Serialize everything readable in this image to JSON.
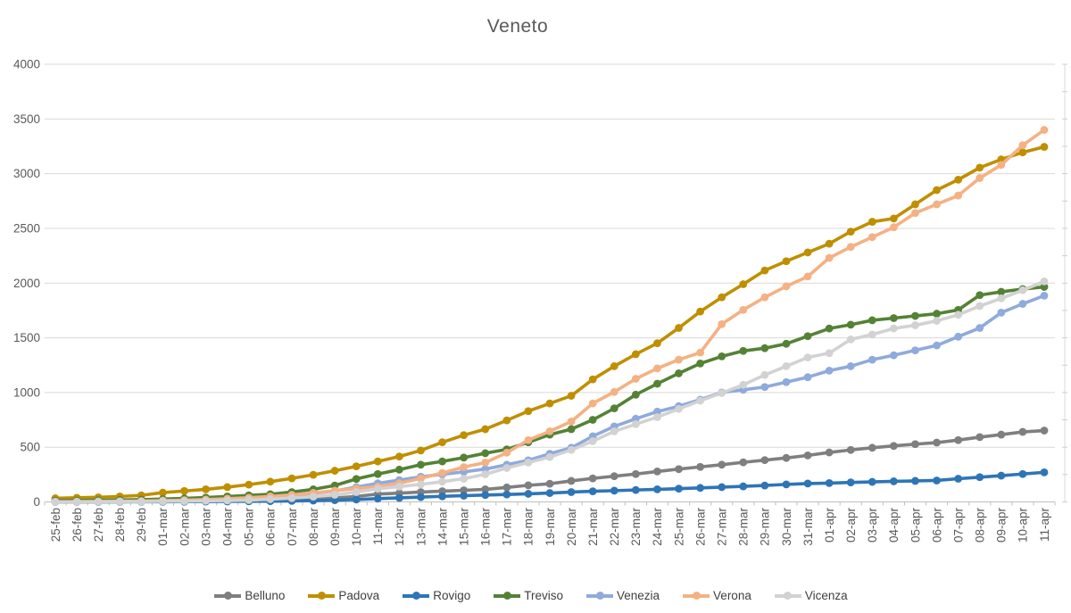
{
  "chart_data": {
    "type": "line",
    "title": "Veneto",
    "xlabel": "",
    "ylabel": "",
    "ylim": [
      0,
      4000
    ],
    "y_tick_step": 500,
    "y_ticks": [
      "4000",
      "3500",
      "3000",
      "2500",
      "2000",
      "1500",
      "1000",
      "500",
      "0"
    ],
    "grid": "horizontal",
    "legend_position": "bottom",
    "right_axis_minor_tick_step": 250,
    "marker": "circle",
    "categories": [
      "25-feb",
      "26-feb",
      "27-feb",
      "28-feb",
      "29-feb",
      "01-mar",
      "02-mar",
      "03-mar",
      "04-mar",
      "05-mar",
      "06-mar",
      "07-mar",
      "08-mar",
      "09-mar",
      "10-mar",
      "11-mar",
      "12-mar",
      "13-mar",
      "14-mar",
      "15-mar",
      "16-mar",
      "17-mar",
      "18-mar",
      "19-mar",
      "20-mar",
      "21-mar",
      "22-mar",
      "23-mar",
      "24-mar",
      "25-mar",
      "26-mar",
      "27-mar",
      "28-mar",
      "29-mar",
      "30-mar",
      "31-mar",
      "01-apr",
      "02-apr",
      "03-apr",
      "04-apr",
      "05-apr",
      "06-apr",
      "07-apr",
      "08-apr",
      "09-apr",
      "10-apr",
      "11-apr"
    ],
    "series": [
      {
        "name": "Belluno",
        "color": "#7f7f7f",
        "values": [
          1,
          1,
          1,
          2,
          2,
          3,
          4,
          6,
          8,
          10,
          14,
          19,
          26,
          36,
          50,
          72,
          80,
          90,
          98,
          106,
          115,
          132,
          152,
          166,
          192,
          215,
          235,
          255,
          278,
          300,
          320,
          340,
          362,
          382,
          402,
          425,
          452,
          475,
          495,
          512,
          528,
          542,
          565,
          592,
          615,
          640,
          652
        ]
      },
      {
        "name": "Padova",
        "color": "#bf8f00",
        "values": [
          33,
          38,
          42,
          50,
          60,
          85,
          100,
          115,
          135,
          158,
          185,
          215,
          248,
          285,
          325,
          370,
          415,
          470,
          545,
          610,
          665,
          745,
          830,
          900,
          970,
          1120,
          1240,
          1350,
          1450,
          1590,
          1740,
          1870,
          1990,
          2115,
          2200,
          2280,
          2360,
          2470,
          2560,
          2590,
          2720,
          2850,
          2945,
          3055,
          3130,
          3195,
          3245
        ]
      },
      {
        "name": "Rovigo",
        "color": "#2e75b6",
        "values": [
          0,
          0,
          0,
          0,
          1,
          1,
          2,
          3,
          4,
          5,
          7,
          9,
          12,
          16,
          22,
          30,
          37,
          44,
          51,
          57,
          63,
          68,
          74,
          81,
          90,
          97,
          103,
          109,
          115,
          121,
          128,
          135,
          142,
          150,
          160,
          168,
          172,
          178,
          183,
          188,
          192,
          196,
          212,
          226,
          240,
          255,
          270
        ]
      },
      {
        "name": "Treviso",
        "color": "#548235",
        "values": [
          12,
          13,
          15,
          18,
          21,
          26,
          32,
          40,
          50,
          60,
          70,
          90,
          115,
          150,
          210,
          255,
          295,
          340,
          370,
          405,
          445,
          480,
          545,
          615,
          665,
          750,
          855,
          980,
          1080,
          1175,
          1265,
          1330,
          1380,
          1405,
          1445,
          1515,
          1585,
          1620,
          1660,
          1680,
          1700,
          1720,
          1755,
          1890,
          1920,
          1945,
          1965
        ]
      },
      {
        "name": "Venezia",
        "color": "#8faadc",
        "values": [
          2,
          3,
          4,
          5,
          7,
          10,
          13,
          17,
          22,
          28,
          45,
          60,
          78,
          100,
          135,
          170,
          200,
          230,
          252,
          275,
          300,
          340,
          380,
          440,
          495,
          600,
          690,
          760,
          825,
          875,
          935,
          1000,
          1025,
          1050,
          1095,
          1140,
          1200,
          1240,
          1300,
          1340,
          1385,
          1430,
          1510,
          1590,
          1730,
          1810,
          1885
        ]
      },
      {
        "name": "Verona",
        "color": "#f4b183",
        "values": [
          2,
          3,
          4,
          6,
          8,
          12,
          16,
          21,
          29,
          38,
          50,
          64,
          82,
          103,
          122,
          140,
          170,
          215,
          265,
          318,
          360,
          450,
          565,
          645,
          735,
          900,
          1005,
          1125,
          1220,
          1300,
          1365,
          1625,
          1755,
          1870,
          1970,
          2060,
          2230,
          2330,
          2420,
          2510,
          2640,
          2720,
          2800,
          2960,
          3080,
          3260,
          3400
        ]
      },
      {
        "name": "Vicenza",
        "color": "#d2d2d2",
        "values": [
          1,
          1,
          2,
          2,
          3,
          5,
          7,
          10,
          13,
          17,
          25,
          35,
          48,
          65,
          90,
          120,
          140,
          160,
          185,
          212,
          253,
          310,
          360,
          410,
          475,
          555,
          645,
          710,
          775,
          850,
          925,
          995,
          1070,
          1160,
          1240,
          1320,
          1360,
          1485,
          1530,
          1585,
          1615,
          1655,
          1710,
          1790,
          1860,
          1935,
          2015
        ]
      }
    ]
  }
}
